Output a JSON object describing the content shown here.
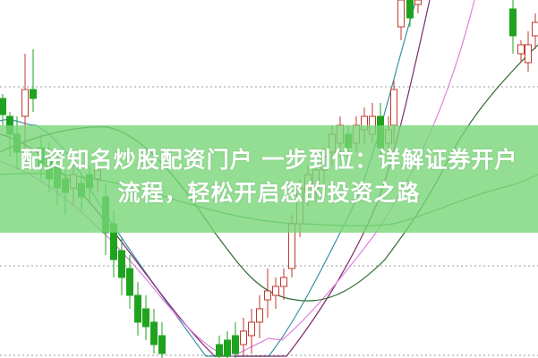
{
  "title": {
    "line1": "配资知名炒股配资门户 一步到位：详解证券开户",
    "line2": "流程，轻松开启您的投资之路"
  },
  "colors": {
    "banner": "#78d678",
    "up_candle": "#c0392b",
    "down_candle": "#1fa31f",
    "ma_blue": "#3a8fa8",
    "ma_purple": "#7a2a6a",
    "ma_pink": "#e080e0",
    "ma_darkgreen": "#2e6b2e",
    "ma_green": "#3fa040"
  }
}
